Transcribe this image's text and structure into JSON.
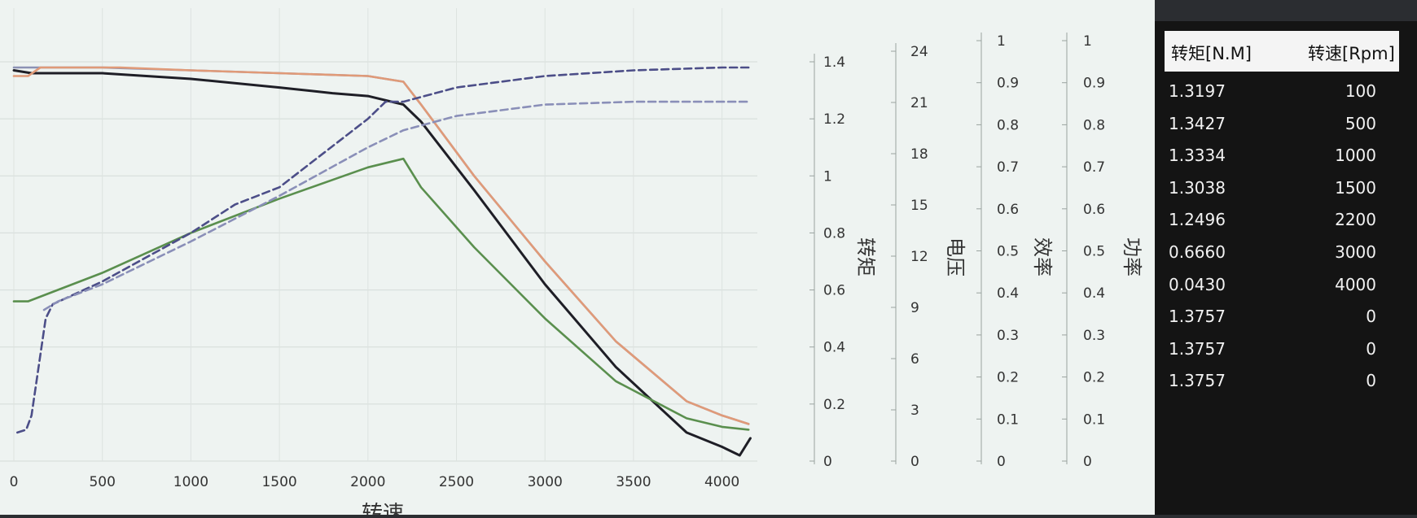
{
  "chart_data": {
    "type": "line",
    "xlabel": "转速",
    "x_ticks": [
      0,
      500,
      1000,
      1500,
      2000,
      2500,
      3000,
      3500,
      4000
    ],
    "xlim": [
      0,
      4200
    ],
    "grid": true,
    "axes": [
      {
        "label": "转矩",
        "ticks": [
          "0",
          "0.2",
          "0.4",
          "0.6",
          "0.8",
          "1",
          "1.2",
          "1.4"
        ],
        "ylim": [
          0,
          1.5
        ]
      },
      {
        "label": "电压",
        "ticks": [
          "0",
          "3",
          "6",
          "9",
          "12",
          "15",
          "18",
          "21",
          "24"
        ],
        "ylim": [
          0,
          24
        ]
      },
      {
        "label": "效率",
        "ticks": [
          "0",
          "0.1",
          "0.2",
          "0.3",
          "0.4",
          "0.5",
          "0.6",
          "0.7",
          "0.8",
          "0.9",
          "1"
        ],
        "ylim": [
          0,
          1
        ]
      },
      {
        "label": "功率",
        "ticks": [
          "0",
          "0.1",
          "0.2",
          "0.3",
          "0.4",
          "0.5",
          "0.6",
          "0.7",
          "0.8",
          "0.9",
          "1"
        ],
        "ylim": [
          0,
          1
        ]
      }
    ],
    "series": [
      {
        "color": "#1e1e26",
        "dash": false,
        "axis": 0,
        "x": [
          0,
          100,
          500,
          1000,
          1500,
          1800,
          2000,
          2200,
          2300,
          2600,
          3000,
          3400,
          3800,
          4000,
          4100,
          4160
        ],
        "y": [
          1.37,
          1.36,
          1.36,
          1.34,
          1.31,
          1.29,
          1.28,
          1.25,
          1.19,
          0.95,
          0.62,
          0.33,
          0.1,
          0.05,
          0.02,
          0.08
        ]
      },
      {
        "color": "#8c92b4",
        "dash": false,
        "axis": 0,
        "x": [
          0,
          100,
          500,
          1000,
          1500,
          2000,
          2200,
          2300,
          2600,
          3000,
          3400,
          3800,
          4000,
          4150
        ],
        "y": [
          1.38,
          1.38,
          1.38,
          1.37,
          1.36,
          1.35,
          1.33,
          1.25,
          1.0,
          0.7,
          0.42,
          0.21,
          0.16,
          0.13
        ]
      },
      {
        "color": "#e09a78",
        "dash": false,
        "axis": 0,
        "x": [
          0,
          80,
          150,
          300,
          600,
          1000,
          1500,
          2000,
          2200,
          2300,
          2600,
          3000,
          3400,
          3800,
          4000,
          4150
        ],
        "y": [
          1.35,
          1.35,
          1.38,
          1.38,
          1.38,
          1.37,
          1.36,
          1.35,
          1.33,
          1.25,
          1.0,
          0.7,
          0.42,
          0.21,
          0.16,
          0.13
        ]
      },
      {
        "color": "#5a8f4e",
        "dash": false,
        "axis": 0,
        "x": [
          0,
          80,
          500,
          1000,
          1500,
          2000,
          2200,
          2300,
          2600,
          3000,
          3400,
          3800,
          4000,
          4150
        ],
        "y": [
          0.56,
          0.56,
          0.66,
          0.8,
          0.92,
          1.03,
          1.06,
          0.96,
          0.75,
          0.5,
          0.28,
          0.15,
          0.12,
          0.11
        ]
      },
      {
        "color": "#4c4e88",
        "dash": true,
        "axis": 0,
        "x": [
          20,
          70,
          100,
          180,
          220,
          500,
          1000,
          1250,
          1500,
          2000,
          2100,
          2200,
          2500,
          3000,
          3500,
          4000,
          4150
        ],
        "y": [
          0.1,
          0.11,
          0.16,
          0.5,
          0.55,
          0.63,
          0.8,
          0.9,
          0.96,
          1.2,
          1.26,
          1.26,
          1.31,
          1.35,
          1.37,
          1.38,
          1.38
        ]
      },
      {
        "color": "#8a8fb8",
        "dash": true,
        "axis": 0,
        "x": [
          170,
          250,
          500,
          1000,
          1500,
          2000,
          2200,
          2500,
          3000,
          3500,
          4000,
          4150
        ],
        "y": [
          0.53,
          0.56,
          0.62,
          0.77,
          0.93,
          1.1,
          1.16,
          1.21,
          1.25,
          1.26,
          1.26,
          1.26
        ]
      }
    ]
  },
  "table": {
    "headers": [
      "转矩[N.M]",
      "转速[Rpm]"
    ],
    "rows": [
      [
        "1.3197",
        "100"
      ],
      [
        "1.3427",
        "500"
      ],
      [
        "1.3334",
        "1000"
      ],
      [
        "1.3038",
        "1500"
      ],
      [
        "1.2496",
        "2200"
      ],
      [
        "0.6660",
        "3000"
      ],
      [
        "0.0430",
        "4000"
      ],
      [
        "1.3757",
        "0"
      ],
      [
        "1.3757",
        "0"
      ],
      [
        "1.3757",
        "0"
      ]
    ]
  }
}
